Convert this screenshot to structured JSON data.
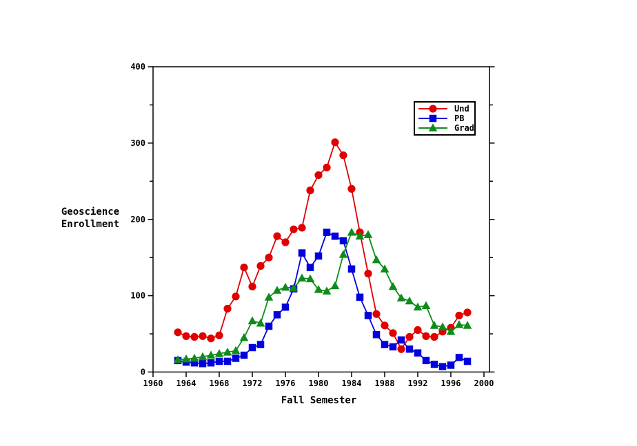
{
  "colors": {
    "background": "#ffffff",
    "axis": "#000000",
    "und": "#e00000",
    "pb": "#0000dd",
    "grad": "#0e8c1a"
  },
  "chart_data": {
    "type": "line",
    "title": "",
    "xlabel": "Fall Semester",
    "ylabel_lines": [
      "Geoscience",
      "Enrollment"
    ],
    "xlim": [
      1960,
      2000
    ],
    "ylim": [
      0,
      400
    ],
    "xticks": [
      1960,
      1964,
      1968,
      1972,
      1976,
      1980,
      1984,
      1988,
      1992,
      1996,
      2000
    ],
    "yticks_major": [
      0,
      100,
      200,
      300,
      400
    ],
    "yticks_minor": [
      50,
      150,
      250,
      350
    ],
    "grid": false,
    "legend_position": "upper-right",
    "x": [
      1963,
      1964,
      1965,
      1966,
      1967,
      1968,
      1969,
      1970,
      1971,
      1972,
      1973,
      1974,
      1975,
      1976,
      1977,
      1978,
      1979,
      1980,
      1981,
      1982,
      1983,
      1984,
      1985,
      1986,
      1987,
      1988,
      1989,
      1990,
      1991,
      1992,
      1993,
      1994,
      1995,
      1996,
      1997,
      1998
    ],
    "series": [
      {
        "name": "Und",
        "marker": "circle",
        "color": "#e00000",
        "values": [
          52,
          47,
          46,
          47,
          44,
          48,
          83,
          99,
          137,
          112,
          139,
          150,
          178,
          170,
          187,
          189,
          238,
          258,
          268,
          301,
          284,
          240,
          183,
          129,
          76,
          61,
          51,
          30,
          46,
          55,
          47,
          46,
          53,
          58,
          74,
          78
        ]
      },
      {
        "name": "PB",
        "marker": "square",
        "color": "#0000dd",
        "values": [
          15,
          13,
          12,
          11,
          12,
          14,
          14,
          18,
          22,
          32,
          36,
          60,
          75,
          85,
          109,
          156,
          137,
          152,
          183,
          178,
          172,
          135,
          98,
          74,
          49,
          36,
          33,
          42,
          30,
          25,
          15,
          10,
          7,
          9,
          19,
          14
        ]
      },
      {
        "name": "Grad",
        "marker": "triangle",
        "color": "#0e8c1a",
        "values": [
          16,
          17,
          18,
          20,
          22,
          24,
          26,
          28,
          45,
          67,
          64,
          98,
          107,
          111,
          110,
          123,
          122,
          108,
          106,
          113,
          154,
          183,
          178,
          180,
          147,
          135,
          112,
          97,
          93,
          85,
          87,
          61,
          59,
          53,
          62,
          61
        ]
      }
    ]
  }
}
